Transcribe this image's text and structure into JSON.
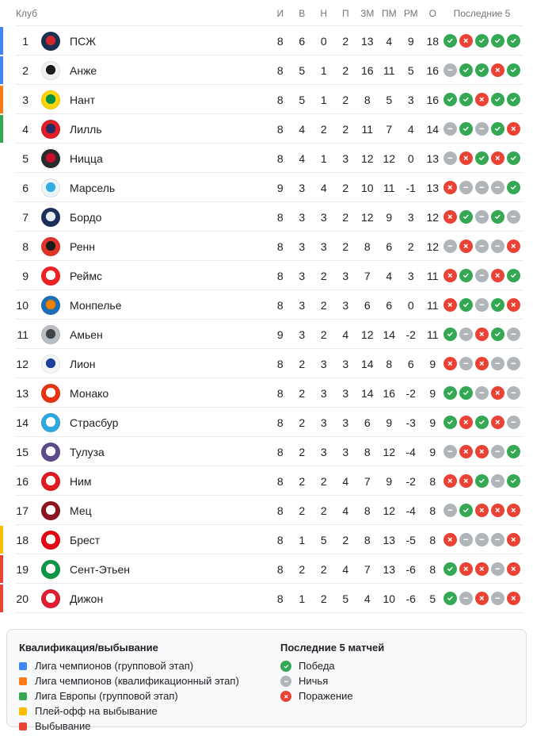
{
  "header": {
    "club": "Клуб",
    "stat_columns": [
      "И",
      "В",
      "Н",
      "П",
      "ЗМ",
      "ПМ",
      "РМ",
      "О"
    ],
    "last5": "Последние 5"
  },
  "table": {
    "rows": [
      {
        "pos": 1,
        "club": "ПСЖ",
        "zone": "ucl_group",
        "logo": {
          "primary": "#1a3150",
          "accent": "#d0282e"
        },
        "stats": [
          8,
          6,
          0,
          2,
          13,
          4,
          9,
          18
        ],
        "last5": [
          "w",
          "l",
          "w",
          "w",
          "w"
        ]
      },
      {
        "pos": 2,
        "club": "Анже",
        "zone": "ucl_group",
        "logo": {
          "primary": "#f2f2f2",
          "accent": "#1a1a1a"
        },
        "stats": [
          8,
          5,
          1,
          2,
          16,
          11,
          5,
          16
        ],
        "last5": [
          "d",
          "w",
          "w",
          "l",
          "w"
        ]
      },
      {
        "pos": 3,
        "club": "Нант",
        "zone": "ucl_qual",
        "logo": {
          "primary": "#fcd405",
          "accent": "#009048"
        },
        "stats": [
          8,
          5,
          1,
          2,
          8,
          5,
          3,
          16
        ],
        "last5": [
          "w",
          "w",
          "l",
          "w",
          "w"
        ]
      },
      {
        "pos": 4,
        "club": "Лилль",
        "zone": "uel_group",
        "logo": {
          "primary": "#e01e25",
          "accent": "#232e60"
        },
        "stats": [
          8,
          4,
          2,
          2,
          11,
          7,
          4,
          14
        ],
        "last5": [
          "d",
          "w",
          "d",
          "w",
          "l"
        ]
      },
      {
        "pos": 5,
        "club": "Ницца",
        "zone": null,
        "logo": {
          "primary": "#2b2b2b",
          "accent": "#c8102e"
        },
        "stats": [
          8,
          4,
          1,
          3,
          12,
          12,
          0,
          13
        ],
        "last5": [
          "d",
          "l",
          "w",
          "l",
          "w"
        ]
      },
      {
        "pos": 6,
        "club": "Марсель",
        "zone": null,
        "logo": {
          "primary": "#eef4fb",
          "accent": "#2faee0"
        },
        "stats": [
          9,
          3,
          4,
          2,
          10,
          11,
          -1,
          13
        ],
        "last5": [
          "l",
          "d",
          "d",
          "d",
          "w"
        ]
      },
      {
        "pos": 7,
        "club": "Бордо",
        "zone": null,
        "logo": {
          "primary": "#1b2f5b",
          "accent": "#e8eef7"
        },
        "stats": [
          8,
          3,
          3,
          2,
          12,
          9,
          3,
          12
        ],
        "last5": [
          "l",
          "w",
          "d",
          "w",
          "d"
        ]
      },
      {
        "pos": 8,
        "club": "Ренн",
        "zone": null,
        "logo": {
          "primary": "#e13327",
          "accent": "#1a1a1a"
        },
        "stats": [
          8,
          3,
          3,
          2,
          8,
          6,
          2,
          12
        ],
        "last5": [
          "d",
          "l",
          "d",
          "d",
          "l"
        ]
      },
      {
        "pos": 9,
        "club": "Реймс",
        "zone": null,
        "logo": {
          "primary": "#ee2223",
          "accent": "#ffffff"
        },
        "stats": [
          8,
          3,
          2,
          3,
          7,
          4,
          3,
          11
        ],
        "last5": [
          "l",
          "w",
          "d",
          "l",
          "w"
        ]
      },
      {
        "pos": 10,
        "club": "Монпелье",
        "zone": null,
        "logo": {
          "primary": "#1f6eb5",
          "accent": "#f08100"
        },
        "stats": [
          8,
          3,
          2,
          3,
          6,
          6,
          0,
          11
        ],
        "last5": [
          "l",
          "w",
          "d",
          "w",
          "l"
        ]
      },
      {
        "pos": 11,
        "club": "Амьен",
        "zone": null,
        "logo": {
          "primary": "#b9bec4",
          "accent": "#3e4347"
        },
        "stats": [
          9,
          3,
          2,
          4,
          12,
          14,
          -2,
          11
        ],
        "last5": [
          "w",
          "d",
          "l",
          "w",
          "d"
        ]
      },
      {
        "pos": 12,
        "club": "Лион",
        "zone": null,
        "logo": {
          "primary": "#f4f6f9",
          "accent": "#20409a"
        },
        "stats": [
          8,
          2,
          3,
          3,
          14,
          8,
          6,
          9
        ],
        "last5": [
          "l",
          "d",
          "l",
          "d",
          "d"
        ]
      },
      {
        "pos": 13,
        "club": "Монако",
        "zone": null,
        "logo": {
          "primary": "#e63312",
          "accent": "#ffffff"
        },
        "stats": [
          8,
          2,
          3,
          3,
          14,
          16,
          -2,
          9
        ],
        "last5": [
          "w",
          "w",
          "d",
          "l",
          "d"
        ]
      },
      {
        "pos": 14,
        "club": "Страсбур",
        "zone": null,
        "logo": {
          "primary": "#2da9e1",
          "accent": "#ffffff"
        },
        "stats": [
          8,
          2,
          3,
          3,
          6,
          9,
          -3,
          9
        ],
        "last5": [
          "w",
          "l",
          "w",
          "l",
          "d"
        ]
      },
      {
        "pos": 15,
        "club": "Тулуза",
        "zone": null,
        "logo": {
          "primary": "#5e4b8b",
          "accent": "#ffffff"
        },
        "stats": [
          8,
          2,
          3,
          3,
          8,
          12,
          -4,
          9
        ],
        "last5": [
          "d",
          "l",
          "l",
          "d",
          "w"
        ]
      },
      {
        "pos": 16,
        "club": "Ним",
        "zone": null,
        "logo": {
          "primary": "#e01a22",
          "accent": "#ffffff"
        },
        "stats": [
          8,
          2,
          2,
          4,
          7,
          9,
          -2,
          8
        ],
        "last5": [
          "l",
          "l",
          "w",
          "d",
          "w"
        ]
      },
      {
        "pos": 17,
        "club": "Мец",
        "zone": null,
        "logo": {
          "primary": "#8c1620",
          "accent": "#ffffff"
        },
        "stats": [
          8,
          2,
          2,
          4,
          8,
          12,
          -4,
          8
        ],
        "last5": [
          "d",
          "w",
          "l",
          "l",
          "l"
        ]
      },
      {
        "pos": 18,
        "club": "Брест",
        "zone": "playoff",
        "logo": {
          "primary": "#e30613",
          "accent": "#ffffff"
        },
        "stats": [
          8,
          1,
          5,
          2,
          8,
          13,
          -5,
          8
        ],
        "last5": [
          "l",
          "d",
          "d",
          "d",
          "l"
        ]
      },
      {
        "pos": 19,
        "club": "Сент-Этьен",
        "zone": "relegation",
        "logo": {
          "primary": "#0c9646",
          "accent": "#ffffff"
        },
        "stats": [
          8,
          2,
          2,
          4,
          7,
          13,
          -6,
          8
        ],
        "last5": [
          "w",
          "l",
          "l",
          "d",
          "l"
        ]
      },
      {
        "pos": 20,
        "club": "Дижон",
        "zone": "relegation",
        "logo": {
          "primary": "#e01e30",
          "accent": "#ffffff"
        },
        "stats": [
          8,
          1,
          2,
          5,
          4,
          10,
          -6,
          5
        ],
        "last5": [
          "w",
          "d",
          "l",
          "d",
          "l"
        ]
      }
    ]
  },
  "legend": {
    "qualification": {
      "title": "Квалификация/выбывание",
      "items": [
        {
          "zone": "ucl_group",
          "label": "Лига чемпионов (групповой этап)"
        },
        {
          "zone": "ucl_qual",
          "label": "Лига чемпионов (квалификационный этап)"
        },
        {
          "zone": "uel_group",
          "label": "Лига Европы (групповой этап)"
        },
        {
          "zone": "playoff",
          "label": "Плей-офф на выбывание"
        },
        {
          "zone": "relegation",
          "label": "Выбывание"
        }
      ]
    },
    "last5": {
      "title": "Последние 5 матчей",
      "items": [
        {
          "result": "w",
          "label": "Победа"
        },
        {
          "result": "d",
          "label": "Ничья"
        },
        {
          "result": "l",
          "label": "Поражение"
        }
      ]
    }
  },
  "colors": {
    "zones": {
      "ucl_group": "#4285f4",
      "ucl_qual": "#fa7b17",
      "uel_group": "#34a853",
      "playoff": "#fbbc04",
      "relegation": "#ea4335"
    },
    "results": {
      "w": "#34a853",
      "d": "#b0b5ba",
      "l": "#ea4335"
    }
  }
}
